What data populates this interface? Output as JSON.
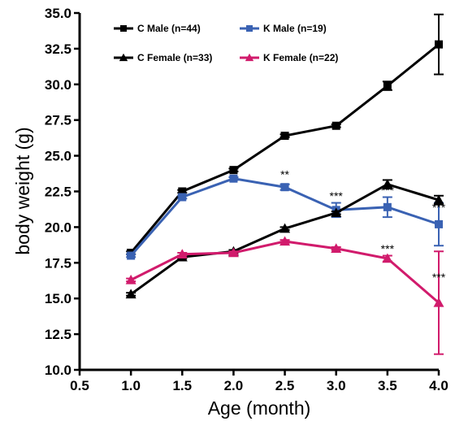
{
  "chart_data": {
    "type": "line",
    "xlabel": "Age (month)",
    "ylabel": "body weight (g)",
    "xlim": [
      0.5,
      4.0
    ],
    "ylim": [
      10.0,
      35.0
    ],
    "x_ticks": [
      "0.5",
      "1.0",
      "1.5",
      "2.0",
      "2.5",
      "3.0",
      "3.5",
      "4.0"
    ],
    "y_ticks": [
      "10.0",
      "12.5",
      "15.0",
      "17.5",
      "20.0",
      "22.5",
      "25.0",
      "27.5",
      "30.0",
      "32.5",
      "35.0"
    ],
    "grid": false,
    "legend_position": "top-left",
    "x": [
      1.0,
      1.5,
      2.0,
      2.5,
      3.0,
      3.5,
      4.0
    ],
    "series": [
      {
        "name": "C Male (n=44)",
        "color": "#000000",
        "marker": "square",
        "values": [
          18.2,
          22.5,
          24.0,
          26.4,
          27.1,
          29.9,
          32.8
        ],
        "errors": [
          0.1,
          0.1,
          0.1,
          0.1,
          0.1,
          0.3,
          2.1
        ]
      },
      {
        "name": "K Male (n=19)",
        "color": "#3a62b3",
        "marker": "square",
        "values": [
          18.0,
          22.1,
          23.4,
          22.8,
          21.2,
          21.4,
          20.2
        ],
        "errors": [
          0.1,
          0.1,
          0.1,
          0.2,
          0.5,
          0.7,
          1.5
        ]
      },
      {
        "name": "C Female (n=33)",
        "color": "#000000",
        "marker": "triangle",
        "values": [
          15.3,
          17.9,
          18.3,
          19.9,
          21.0,
          23.0,
          21.9
        ],
        "errors": [
          0.1,
          0.1,
          0.1,
          0.1,
          0.1,
          0.3,
          0.3
        ]
      },
      {
        "name": "K Female (n=22)",
        "color": "#d11b6c",
        "marker": "triangle",
        "values": [
          16.3,
          18.1,
          18.2,
          19.0,
          18.5,
          17.8,
          14.7
        ],
        "errors": [
          0.1,
          0.1,
          0.1,
          0.1,
          0.1,
          0.2,
          3.6
        ]
      }
    ],
    "annotations": [
      {
        "text": "**",
        "x": 2.5,
        "y": 23.4
      },
      {
        "text": "***",
        "x": 3.0,
        "y": 21.9
      },
      {
        "text": "***",
        "x": 3.5,
        "y": 22.3
      },
      {
        "text": "***",
        "x": 4.0,
        "y": 21.1
      },
      {
        "text": "***",
        "x": 3.5,
        "y": 18.2
      },
      {
        "text": "***",
        "x": 4.0,
        "y": 16.2
      }
    ]
  }
}
